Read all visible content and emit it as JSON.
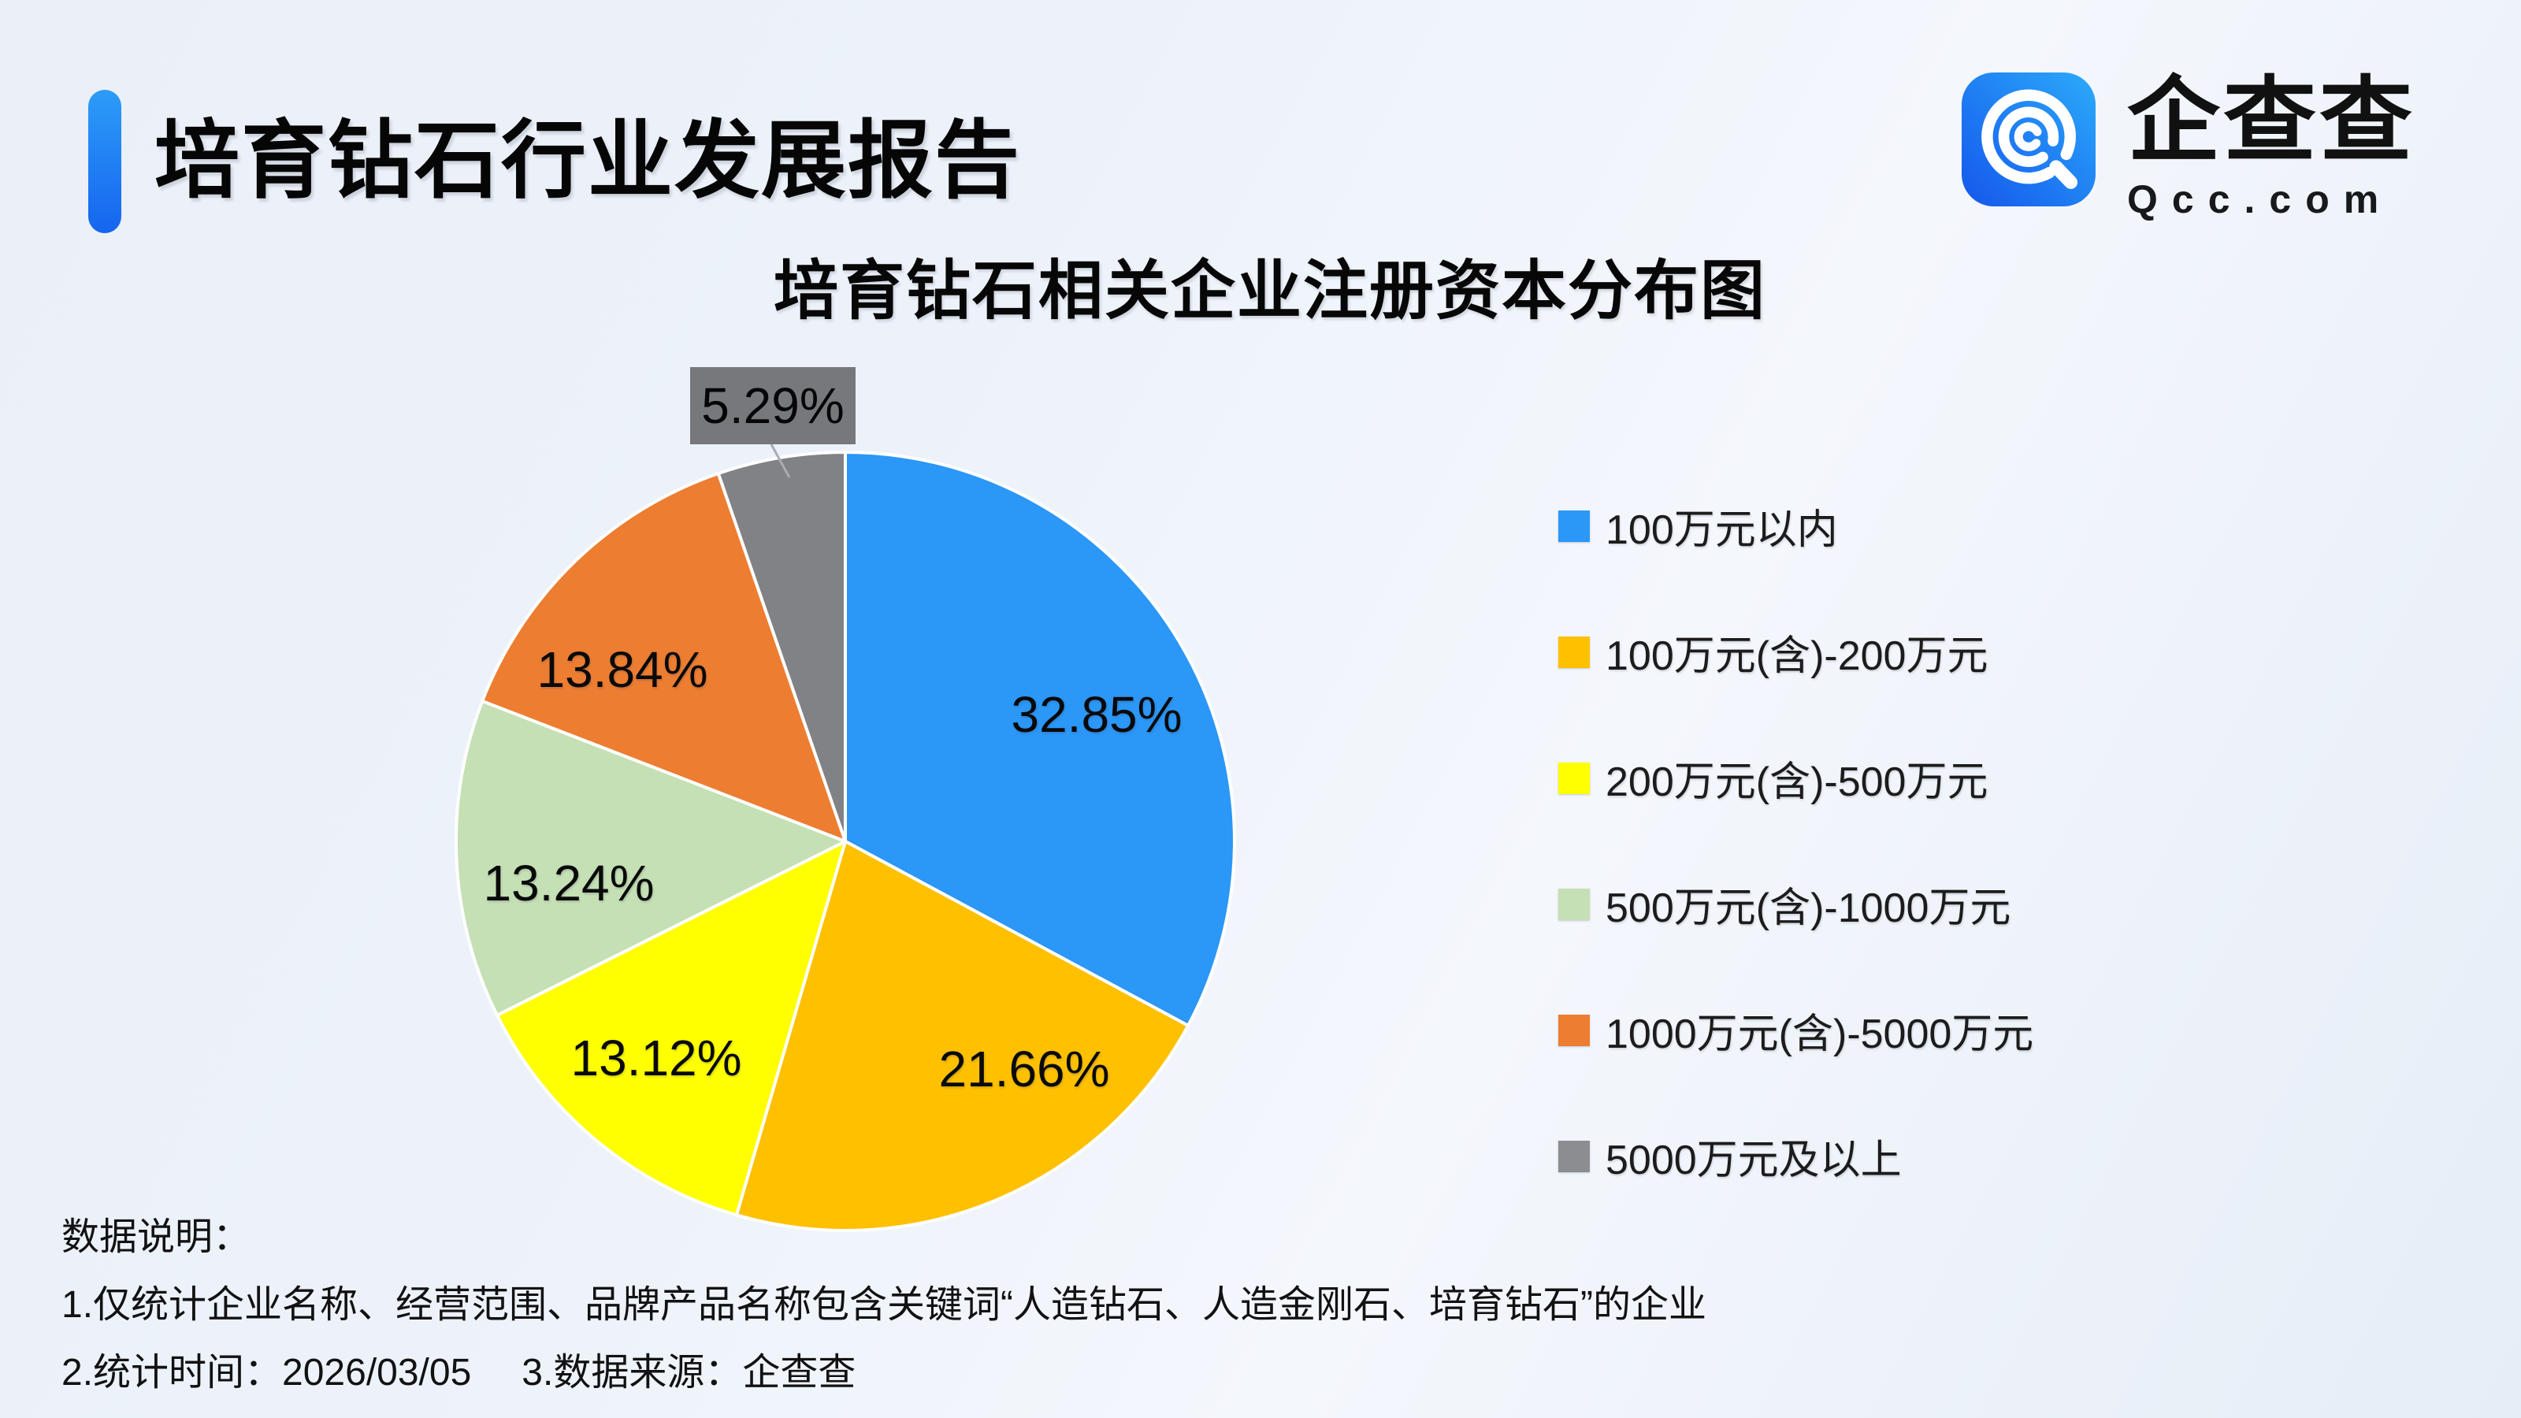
{
  "header": {
    "title": "培育钻石行业发展报告"
  },
  "logo": {
    "brand": "企查查",
    "domain": "Qcc.com"
  },
  "chart": {
    "title": "培育钻石相关企业注册资本分布图"
  },
  "chart_data": {
    "type": "pie",
    "title": "培育钻石相关企业注册资本分布图",
    "unit": "percent",
    "direction": "clockwise",
    "start_angle_deg": 0,
    "legend_position": "right",
    "slices": [
      {
        "label": "100万元以内",
        "value": 32.85,
        "color": "#2B97F7"
      },
      {
        "label": "100万元(含)-200万元",
        "value": 21.66,
        "color": "#FFC000"
      },
      {
        "label": "200万元(含)-500万元",
        "value": 13.12,
        "color": "#FFFF00"
      },
      {
        "label": "500万元(含)-1000万元",
        "value": 13.24,
        "color": "#C5E0B4"
      },
      {
        "label": "1000万元(含)-5000万元",
        "value": 13.84,
        "color": "#ED7D31"
      },
      {
        "label": "5000万元及以上",
        "value": 5.29,
        "color": "#808285"
      }
    ],
    "data_labels": [
      "32.85%",
      "21.66%",
      "13.12%",
      "13.24%",
      "13.84%",
      "5.29%"
    ],
    "legend_swatch_colors": [
      "#2B97F7",
      "#FFC000",
      "#FFFF00",
      "#C5E0B4",
      "#ED7D31",
      "#8C8D90"
    ]
  },
  "colors": {
    "accent_blue": "#1565EF",
    "callout_bg": "#76787B",
    "leader_line": "#A9ACB0",
    "slice_stroke": "#FFFFFF"
  },
  "notes": {
    "heading": "数据说明：",
    "line1": "1.仅统计企业名称、经营范围、品牌产品名称包含关键词“人造钻石、人造金刚石、培育钻石”的企业",
    "line2a": "2.统计时间：2026/03/05",
    "line2b": "3.数据来源：企查查"
  }
}
